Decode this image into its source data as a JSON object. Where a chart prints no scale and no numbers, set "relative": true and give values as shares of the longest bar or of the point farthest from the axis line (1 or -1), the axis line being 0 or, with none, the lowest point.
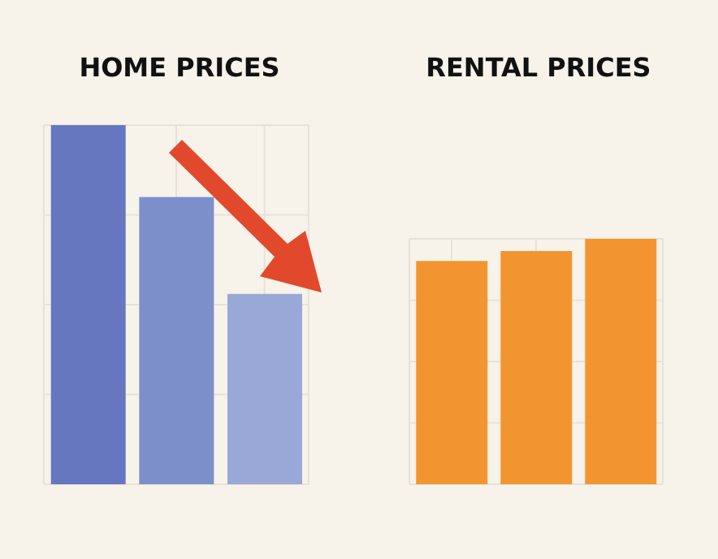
{
  "chart_data": [
    {
      "type": "bar",
      "title": "HOME PRICES",
      "relative": true,
      "categories": [
        null,
        null,
        null
      ],
      "values": [
        1,
        0.8,
        0.53
      ],
      "colors": [
        "#6677c0",
        "#7d8fcb",
        "#9aa8d8"
      ],
      "grid": true
    },
    {
      "type": "bar",
      "title": "RENTAL PRICES",
      "relative": true,
      "categories": [
        null,
        null,
        null
      ],
      "values": [
        0.91,
        0.95,
        1
      ],
      "colors": [
        "#f29530",
        "#f29530",
        "#f29530"
      ],
      "grid": true
    }
  ]
}
